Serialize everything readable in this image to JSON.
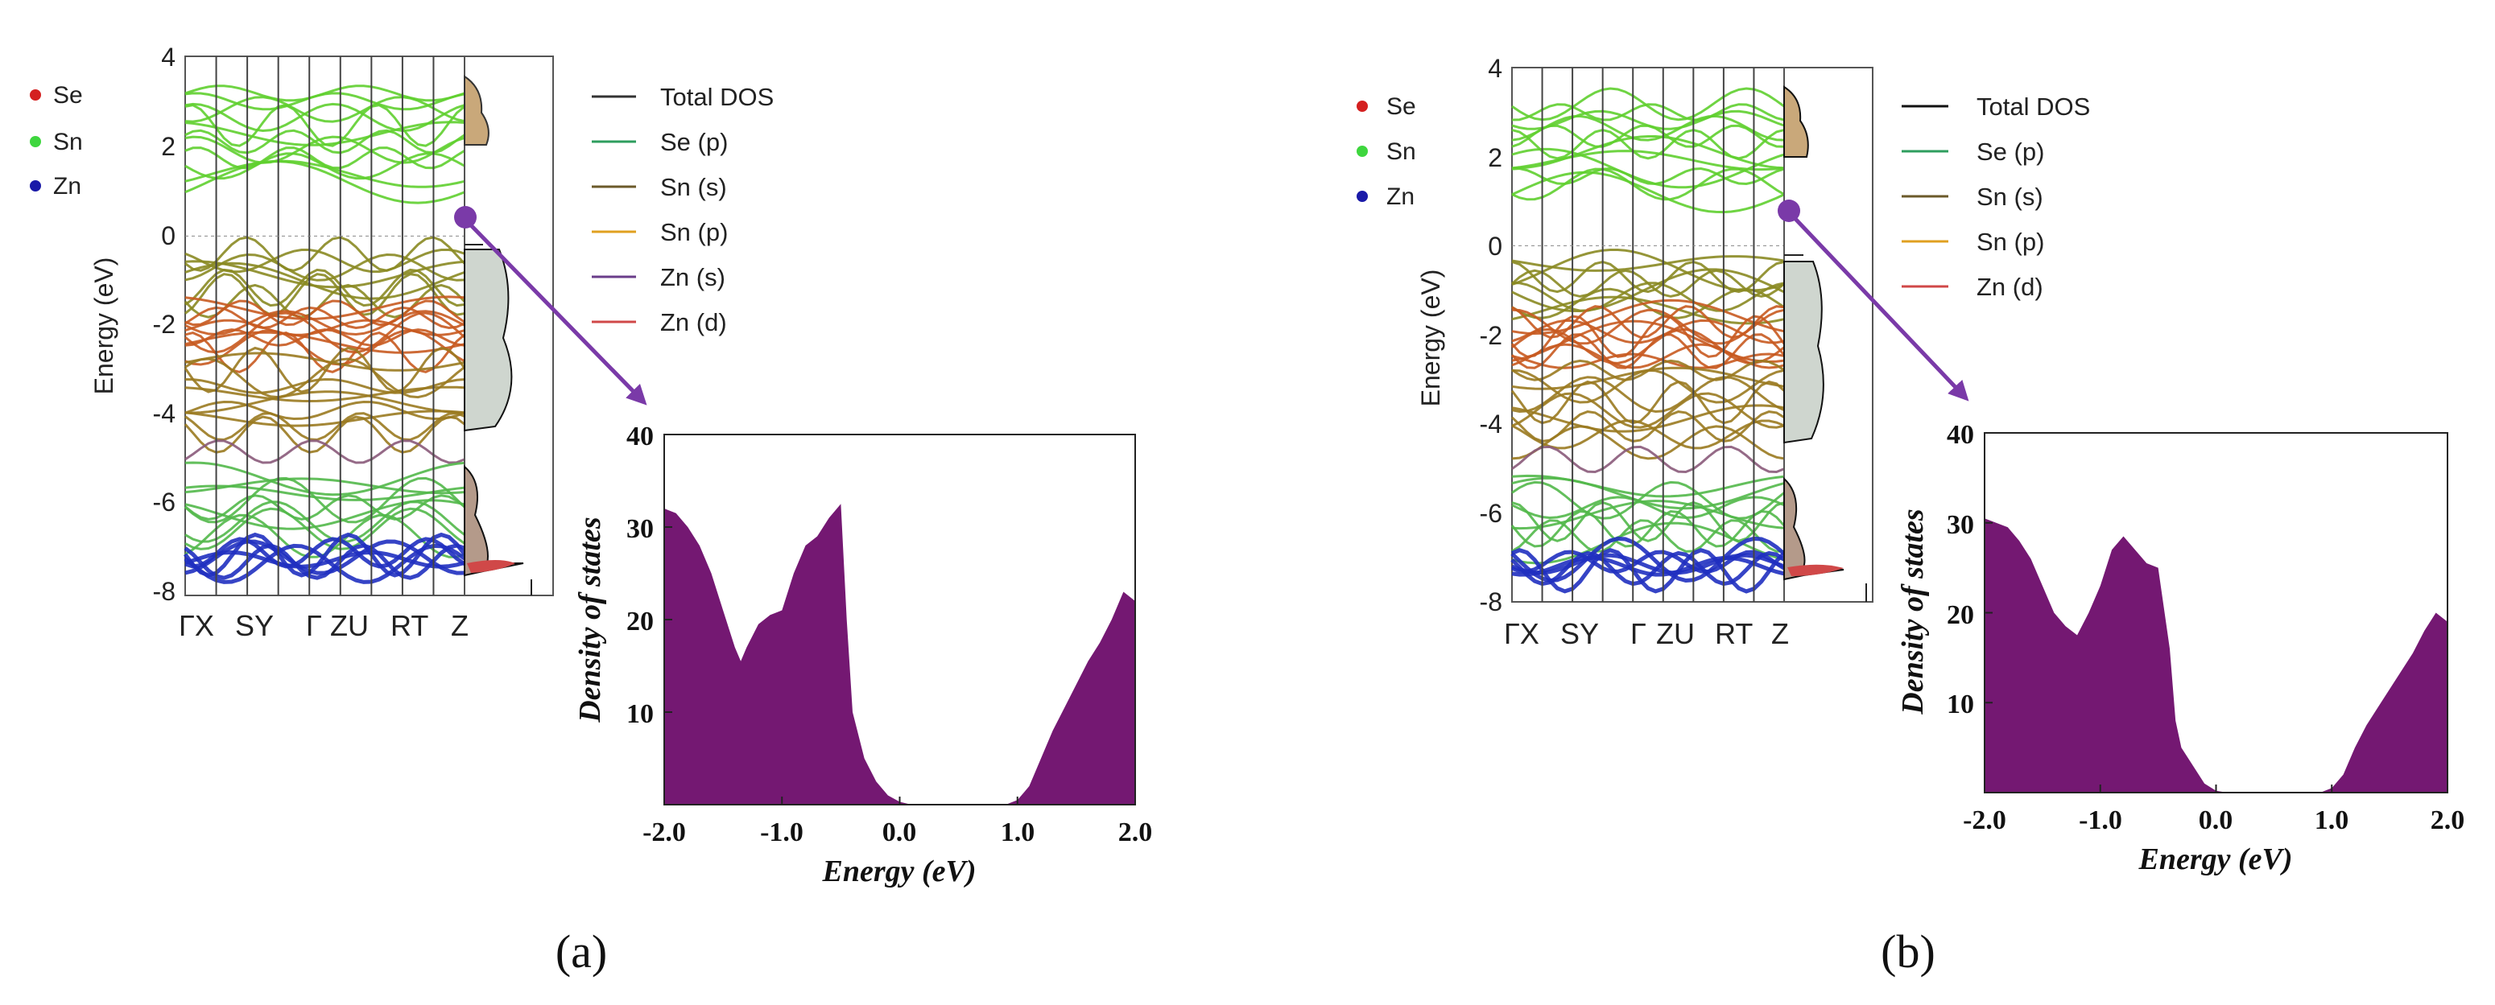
{
  "chart_data": [
    {
      "panel": "(a)",
      "type": "band-structure-with-dos",
      "band_plot": {
        "ylabel": "Energy (eV)",
        "ylim": [
          -8,
          4
        ],
        "yticks": [
          "4",
          "2",
          "0",
          "-2",
          "-4",
          "-6",
          "-8"
        ],
        "kpath": [
          "Γ",
          "X",
          "S",
          "Y",
          "Γ",
          "Z",
          "U",
          "R",
          "T",
          "Z"
        ],
        "xticks_text": [
          "ΓX",
          "SY",
          "Γ",
          "ZU",
          "RT",
          "Z"
        ],
        "atom_legend": [
          {
            "label": "Se",
            "color": "#d42020"
          },
          {
            "label": "Sn",
            "color": "#3ed63e"
          },
          {
            "label": "Zn",
            "color": "#1a1aa8"
          }
        ]
      },
      "dos_legend": [
        {
          "label": "Total DOS",
          "color": "#333333"
        },
        {
          "label": "Se (p)",
          "color": "#2e9e5e"
        },
        {
          "label": "Sn (s)",
          "color": "#6b5a2a"
        },
        {
          "label": "Sn (p)",
          "color": "#e0a020"
        },
        {
          "label": "Zn (s)",
          "color": "#6a3d8a"
        },
        {
          "label": "Zn (d)",
          "color": "#d04848"
        }
      ],
      "inset": {
        "type": "area",
        "title": "",
        "xlabel": "Energy (eV)",
        "ylabel": "Density of states",
        "xlim": [
          -2.0,
          2.0
        ],
        "ylim": [
          0,
          40
        ],
        "xticks": [
          "-2.0",
          "-1.0",
          "0.0",
          "1.0",
          "2.0"
        ],
        "yticks": [
          "40",
          "30",
          "20",
          "10"
        ],
        "fill_color": "#741872",
        "x": [
          -2.0,
          -1.9,
          -1.8,
          -1.7,
          -1.6,
          -1.5,
          -1.4,
          -1.35,
          -1.3,
          -1.2,
          -1.1,
          -1.0,
          -0.9,
          -0.8,
          -0.7,
          -0.6,
          -0.5,
          -0.45,
          -0.4,
          -0.3,
          -0.2,
          -0.1,
          0.0,
          0.1,
          0.5,
          0.9,
          1.0,
          1.1,
          1.2,
          1.3,
          1.4,
          1.5,
          1.6,
          1.7,
          1.8,
          1.9,
          2.0
        ],
        "y": [
          32,
          31.5,
          30,
          28,
          25,
          21,
          17,
          15.5,
          17,
          19.5,
          20.5,
          21,
          25,
          28,
          29,
          31,
          32.5,
          20,
          10,
          5,
          2.5,
          1,
          0.3,
          0,
          0,
          0,
          0.5,
          2,
          5,
          8,
          10.5,
          13,
          15.5,
          17.5,
          20,
          23,
          22
        ]
      }
    },
    {
      "panel": "(b)",
      "type": "band-structure-with-dos",
      "band_plot": {
        "ylabel": "Energy (eV)",
        "ylim": [
          -8,
          4
        ],
        "yticks": [
          "4",
          "2",
          "0",
          "-2",
          "-4",
          "-6",
          "-8"
        ],
        "kpath": [
          "Γ",
          "X",
          "S",
          "Y",
          "Γ",
          "Z",
          "U",
          "R",
          "T",
          "Z"
        ],
        "xticks_text": [
          "ΓX",
          "SY",
          "Γ",
          "ZU",
          "RT",
          "Z"
        ],
        "atom_legend": [
          {
            "label": "Se",
            "color": "#d42020"
          },
          {
            "label": "Sn",
            "color": "#3ed63e"
          },
          {
            "label": "Zn",
            "color": "#1a1aa8"
          }
        ]
      },
      "dos_legend": [
        {
          "label": "Total DOS",
          "color": "#111111"
        },
        {
          "label": "Se (p)",
          "color": "#2e9e5e"
        },
        {
          "label": "Sn (s)",
          "color": "#6b5a2a"
        },
        {
          "label": "Sn (p)",
          "color": "#e0a020"
        },
        {
          "label": "Zn (d)",
          "color": "#d04848"
        }
      ],
      "inset": {
        "type": "area",
        "title": "",
        "xlabel": "Energy (eV)",
        "ylabel": "Density of states",
        "xlim": [
          -2.0,
          2.0
        ],
        "ylim": [
          0,
          40
        ],
        "xticks": [
          "-2.0",
          "-1.0",
          "0.0",
          "1.0",
          "2.0"
        ],
        "yticks": [
          "40",
          "30",
          "20",
          "10"
        ],
        "fill_color": "#741872",
        "x": [
          -2.0,
          -1.9,
          -1.8,
          -1.7,
          -1.6,
          -1.5,
          -1.4,
          -1.3,
          -1.2,
          -1.1,
          -1.0,
          -0.9,
          -0.8,
          -0.7,
          -0.6,
          -0.5,
          -0.4,
          -0.35,
          -0.3,
          -0.2,
          -0.1,
          0.0,
          0.1,
          0.5,
          0.9,
          1.0,
          1.1,
          1.2,
          1.3,
          1.4,
          1.5,
          1.6,
          1.7,
          1.8,
          1.9,
          2.0
        ],
        "y": [
          30.5,
          30,
          29.5,
          28,
          26,
          23,
          20,
          18.5,
          17.5,
          20,
          23,
          27,
          28.5,
          27,
          25.5,
          25,
          16,
          8,
          5,
          3,
          1,
          0.2,
          0,
          0,
          0,
          0.5,
          2,
          5,
          7.5,
          9.5,
          11.5,
          13.5,
          15.5,
          18,
          20,
          19
        ]
      }
    }
  ],
  "captions": [
    "(a)",
    "(b)"
  ]
}
